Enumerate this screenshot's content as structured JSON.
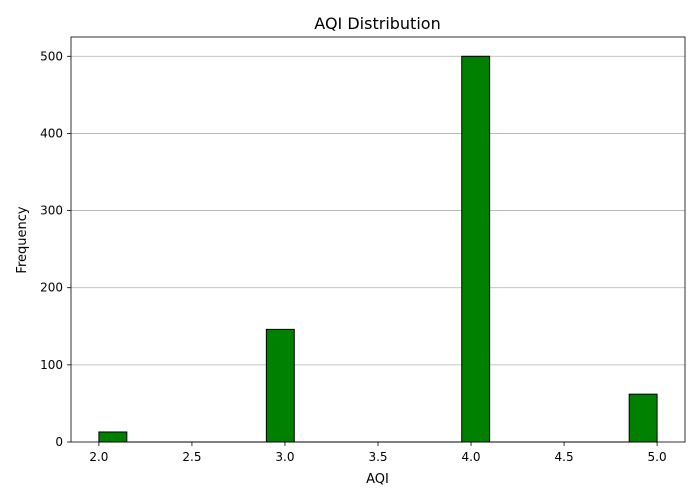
{
  "chart_data": {
    "type": "bar",
    "title": "AQI Distribution",
    "xlabel": "AQI",
    "ylabel": "Frequency",
    "xlim": [
      1.85,
      5.15
    ],
    "ylim": [
      0,
      525
    ],
    "x_ticks": [
      2.0,
      2.5,
      3.0,
      3.5,
      4.0,
      4.5,
      5.0
    ],
    "x_tick_labels": [
      "2.0",
      "2.5",
      "3.0",
      "3.5",
      "4.0",
      "4.5",
      "5.0"
    ],
    "y_ticks": [
      0,
      100,
      200,
      300,
      400,
      500
    ],
    "y_tick_labels": [
      "0",
      "100",
      "200",
      "300",
      "400",
      "500"
    ],
    "grid": "y-major",
    "bin_width": 0.15,
    "bins": [
      {
        "left": 2.0,
        "value": 13
      },
      {
        "left": 2.15,
        "value": 0
      },
      {
        "left": 2.3,
        "value": 0
      },
      {
        "left": 2.45,
        "value": 0
      },
      {
        "left": 2.6,
        "value": 0
      },
      {
        "left": 2.75,
        "value": 0
      },
      {
        "left": 2.9,
        "value": 146
      },
      {
        "left": 3.05,
        "value": 0
      },
      {
        "left": 3.2,
        "value": 0
      },
      {
        "left": 3.35,
        "value": 0
      },
      {
        "left": 3.5,
        "value": 0
      },
      {
        "left": 3.65,
        "value": 0
      },
      {
        "left": 3.8,
        "value": 0
      },
      {
        "left": 3.95,
        "value": 500
      },
      {
        "left": 4.1,
        "value": 0
      },
      {
        "left": 4.25,
        "value": 0
      },
      {
        "left": 4.4,
        "value": 0
      },
      {
        "left": 4.55,
        "value": 0
      },
      {
        "left": 4.7,
        "value": 0
      },
      {
        "left": 4.85,
        "value": 62
      }
    ],
    "bar_color": "#008000",
    "edge_color": "#000000",
    "grid_color": "#b0b0b0"
  }
}
